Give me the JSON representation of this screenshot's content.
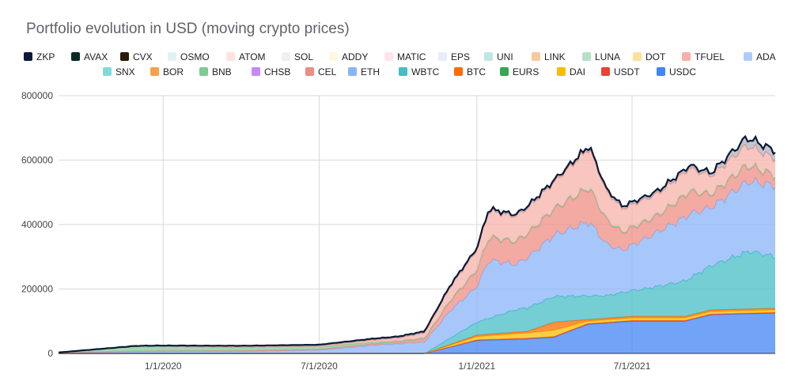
{
  "chart_data": {
    "type": "area",
    "stacked": true,
    "title": "Portfolio evolution in USD (moving crypto prices)",
    "xlabel": "",
    "ylabel": "",
    "x_range": [
      "2019-09-01",
      "2021-12-15"
    ],
    "ylim": [
      0,
      800000
    ],
    "y_ticks": [
      0,
      200000,
      400000,
      600000,
      800000
    ],
    "y_tick_labels": [
      "0",
      "200000",
      "400000",
      "600000",
      "800000"
    ],
    "x_ticks": [
      "2020-01-01",
      "2020-07-01",
      "2021-01-01",
      "2021-07-01"
    ],
    "x_tick_labels": [
      "1/1/2020",
      "7/1/2020",
      "1/1/2021",
      "7/1/2021"
    ],
    "grid": true,
    "legend_position": "top",
    "series_colors": {
      "ZKP": "#0b1a38",
      "AVAX": "#0e2a24",
      "CVX": "#2a1a08",
      "OSMO": "#e0f3f3",
      "ATOM": "#fde4e0",
      "SOL": "#eef0f0",
      "ADDY": "#fdf8de",
      "MATIC": "#fce4ea",
      "EPS": "#e8ecfb",
      "UNI": "#bfe8e3",
      "LINK": "#f8c99b",
      "LUNA": "#b7dfc8",
      "DOT": "#fbe19c",
      "TFUEL": "#f5b1aa",
      "ADA": "#aecbfa",
      "SNX": "#7fdbda",
      "BOR": "#f6a04d",
      "BNB": "#81c995",
      "CHSB": "#c58af9",
      "CEL": "#ee8d84",
      "ETH": "#8ab4f8",
      "WBTC": "#46bdc6",
      "BTC": "#ff6d01",
      "EURS": "#34a853",
      "DAI": "#fbbc04",
      "USDT": "#ea4335",
      "USDC": "#4285f4"
    },
    "series": [
      {
        "name": "USDC",
        "x": [
          "2019-09-01",
          "2020-11-01",
          "2021-01-01",
          "2021-03-01",
          "2021-04-01",
          "2021-05-10",
          "2021-07-01",
          "2021-09-01",
          "2021-10-01",
          "2021-12-15"
        ],
        "values": [
          0,
          0,
          40000,
          45000,
          50000,
          90000,
          100000,
          100000,
          120000,
          125000
        ]
      },
      {
        "name": "USDT",
        "x": [
          "2019-09-01",
          "2020-11-01",
          "2021-01-01",
          "2021-05-10",
          "2021-09-01",
          "2021-12-15"
        ],
        "values": [
          0,
          0,
          2000,
          2000,
          2000,
          2000
        ]
      },
      {
        "name": "DAI",
        "x": [
          "2019-09-01",
          "2020-11-01",
          "2021-01-01",
          "2021-04-01",
          "2021-05-10",
          "2021-09-01",
          "2021-12-15"
        ],
        "values": [
          0,
          0,
          10000,
          20000,
          8000,
          8000,
          8000
        ]
      },
      {
        "name": "BTC",
        "x": [
          "2019-09-01",
          "2020-11-01",
          "2021-01-01",
          "2021-03-01",
          "2021-04-01",
          "2021-05-10",
          "2021-12-15"
        ],
        "values": [
          0,
          0,
          5000,
          5000,
          25000,
          5000,
          5000
        ]
      },
      {
        "name": "WBTC",
        "x": [
          "2019-09-01",
          "2020-11-01",
          "2021-01-01",
          "2021-02-15",
          "2021-04-01",
          "2021-05-01",
          "2021-06-01",
          "2021-07-15",
          "2021-09-01",
          "2021-10-15",
          "2021-11-15",
          "2021-12-15"
        ],
        "values": [
          0,
          0,
          40000,
          70000,
          80000,
          75000,
          70000,
          85000,
          110000,
          150000,
          180000,
          160000
        ]
      },
      {
        "name": "ETH",
        "x": [
          "2019-09-01",
          "2020-01-01",
          "2020-04-01",
          "2020-07-01",
          "2020-09-01",
          "2020-10-01",
          "2020-11-01",
          "2020-12-01",
          "2021-01-01",
          "2021-01-15",
          "2021-02-15",
          "2021-04-01",
          "2021-05-12",
          "2021-06-01",
          "2021-06-20",
          "2021-08-01",
          "2021-09-05",
          "2021-10-01",
          "2021-11-10",
          "2021-12-15"
        ],
        "values": [
          3000,
          6000,
          6000,
          10000,
          25000,
          30000,
          35000,
          85000,
          110000,
          180000,
          140000,
          190000,
          230000,
          160000,
          130000,
          170000,
          200000,
          180000,
          215000,
          220000
        ]
      },
      {
        "name": "CEL",
        "x": [
          "2019-09-01",
          "2020-01-01",
          "2020-07-01",
          "2020-10-01",
          "2020-11-01",
          "2020-12-01",
          "2021-01-01",
          "2021-01-15",
          "2021-02-15",
          "2021-04-01",
          "2021-05-12",
          "2021-06-01",
          "2021-06-20",
          "2021-08-01",
          "2021-09-05",
          "2021-10-01",
          "2021-11-10",
          "2021-12-15"
        ],
        "values": [
          0,
          2000,
          3000,
          5000,
          10000,
          30000,
          50000,
          70000,
          70000,
          80000,
          105000,
          75000,
          55000,
          50000,
          70000,
          40000,
          50000,
          30000
        ]
      },
      {
        "name": "BNB",
        "x": [
          "2019-09-01",
          "2019-12-01",
          "2020-03-01",
          "2020-07-01",
          "2020-11-01",
          "2021-12-15"
        ],
        "values": [
          0,
          15000,
          12000,
          8000,
          3000,
          3000
        ]
      },
      {
        "name": "TFUEL",
        "x": [
          "2019-09-01",
          "2020-07-01",
          "2020-10-01",
          "2020-11-01",
          "2020-12-01",
          "2021-01-01",
          "2021-01-15",
          "2021-02-15",
          "2021-04-01",
          "2021-05-12",
          "2021-06-01",
          "2021-06-20",
          "2021-08-01",
          "2021-09-05",
          "2021-10-01",
          "2021-11-10",
          "2021-12-15"
        ],
        "values": [
          0,
          2000,
          8000,
          15000,
          40000,
          60000,
          80000,
          75000,
          80000,
          120000,
          85000,
          70000,
          65000,
          70000,
          55000,
          60000,
          50000
        ]
      },
      {
        "name": "ZKP",
        "x": [
          "2019-09-01",
          "2021-10-01",
          "2021-11-10",
          "2021-12-15"
        ],
        "values": [
          0,
          10000,
          25000,
          25000
        ]
      }
    ]
  }
}
